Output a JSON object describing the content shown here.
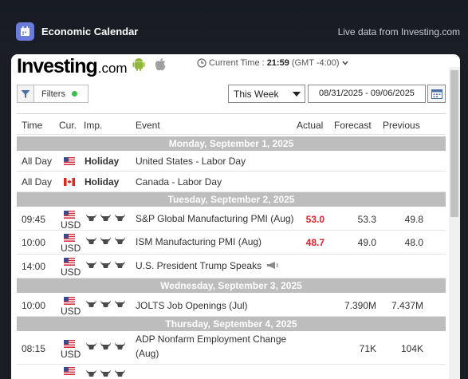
{
  "header": {
    "title": "Economic Calendar",
    "live_data": "Live data from Investing.com",
    "icon": "calendar-icon"
  },
  "widget": {
    "logo_main": "Investing",
    "logo_suffix": ".com",
    "time_label": "Current Time :",
    "time_value": "21:59",
    "timezone": "(GMT -4:00)",
    "filters_label": "Filters",
    "period_selected": "This Week",
    "date_range": "08/31/2025 - 09/06/2025"
  },
  "columns": {
    "time": "Time",
    "cur": "Cur.",
    "imp": "Imp.",
    "event": "Event",
    "actual": "Actual",
    "forecast": "Forecast",
    "previous": "Previous"
  },
  "days": {
    "d1": "Monday, September 1, 2025",
    "d2": "Tuesday, September 2, 2025",
    "d3": "Wednesday, September 3, 2025",
    "d4": "Thursday, September 4, 2025"
  },
  "events": {
    "r1": {
      "time": "All Day",
      "holiday": "Holiday",
      "event": "United States - Labor Day"
    },
    "r2": {
      "time": "All Day",
      "holiday": "Holiday",
      "event": "Canada - Labor Day"
    },
    "r3": {
      "time": "09:45",
      "cur": "USD",
      "event": "S&P Global Manufacturing PMI (Aug)",
      "actual": "53.0",
      "forecast": "53.3",
      "previous": "49.8"
    },
    "r4": {
      "time": "10:00",
      "cur": "USD",
      "event": "ISM Manufacturing PMI (Aug)",
      "actual": "48.7",
      "forecast": "49.0",
      "previous": "48.0"
    },
    "r5": {
      "time": "14:00",
      "cur": "USD",
      "event": "U.S. President Trump Speaks"
    },
    "r6": {
      "time": "10:00",
      "cur": "USD",
      "event": "JOLTS Job Openings (Jul)",
      "forecast": "7.390M",
      "previous": "7.437M"
    },
    "r7": {
      "time": "08:15",
      "cur": "USD",
      "event_line1": "ADP Nonfarm Employment Change",
      "event_line2": "(Aug)",
      "forecast": "71K",
      "previous": "104K"
    }
  },
  "colors": {
    "accent_badge": "#6b7bdc",
    "actual_negative": "#e0202a",
    "day_header": "#bdbdbd",
    "filters_active_dot": "#3bbf4a"
  }
}
